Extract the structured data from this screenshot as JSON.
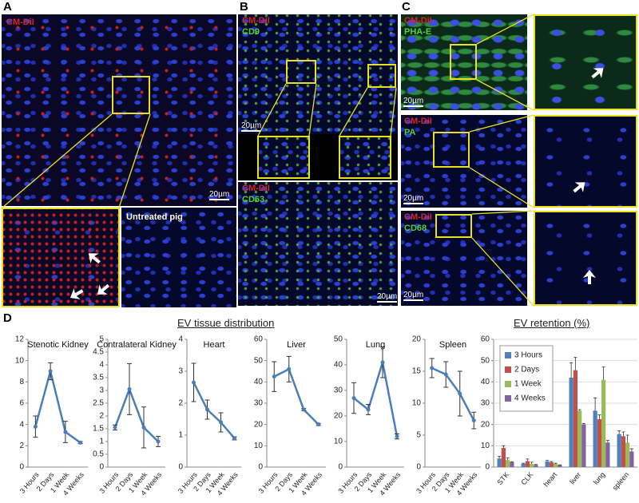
{
  "panel_a": {
    "label": "A",
    "stain": "CM-DiI",
    "scale_bar": "20µm",
    "control": "Untreated pig"
  },
  "panel_b": {
    "label": "B",
    "top": {
      "stain1": "CM-DiI",
      "stain2": "CD9",
      "scale_bar": "20µm"
    },
    "bottom": {
      "stain1": "CM-DiI",
      "stain2": "CD63",
      "scale_bar": "20µm"
    }
  },
  "panel_c": {
    "label": "C",
    "rows": [
      {
        "stain1": "CM-DiI",
        "stain2": "PHA-E",
        "scale_bar": "20µm"
      },
      {
        "stain1": "CM-DiI",
        "stain2": "PA",
        "scale_bar": "20µm"
      },
      {
        "stain1": "CM-DiI",
        "stain2": "CD68",
        "scale_bar": "20µm"
      }
    ]
  },
  "panel_d": {
    "label": "D",
    "heading": "EV tissue distribution"
  },
  "chart_data": [
    {
      "type": "line",
      "title": "Stenotic Kidney",
      "categories": [
        "3 Hours",
        "2 Days",
        "1 Week",
        "4 Weeks"
      ],
      "values": [
        3.8,
        9.0,
        3.3,
        2.3
      ],
      "errors": [
        1.0,
        0.8,
        1.0,
        0.1
      ],
      "color": "#4a7ebb",
      "ylim": [
        0,
        12
      ],
      "yticks": [
        0,
        2,
        4,
        6,
        8,
        10,
        12
      ]
    },
    {
      "type": "line",
      "title": "Contralateral Kidney",
      "categories": [
        "3 Hours",
        "2 Days",
        "1 Week",
        "4 Weeks"
      ],
      "values": [
        1.55,
        3.05,
        1.55,
        1.0
      ],
      "errors": [
        0.1,
        1.0,
        0.8,
        0.2
      ],
      "color": "#4a7ebb",
      "ylim": [
        0,
        5
      ],
      "yticks": [
        0,
        0.5,
        1,
        1.5,
        2,
        2.5,
        3,
        3.5,
        4,
        4.5,
        5
      ]
    },
    {
      "type": "line",
      "title": "Heart",
      "categories": [
        "3 Hours",
        "2 Days",
        "1 Week",
        "4 Weeks"
      ],
      "values": [
        2.65,
        1.8,
        1.4,
        0.9
      ],
      "errors": [
        0.6,
        0.3,
        0.3,
        0.05
      ],
      "color": "#4a7ebb",
      "ylim": [
        0,
        4
      ],
      "yticks": [
        0,
        1,
        2,
        3,
        4
      ]
    },
    {
      "type": "line",
      "title": "Liver",
      "categories": [
        "3 Hours",
        "2 Days",
        "1 Week",
        "4 Weeks"
      ],
      "values": [
        42.5,
        46,
        27,
        20
      ],
      "errors": [
        7,
        6,
        0.5,
        0.5
      ],
      "color": "#4a7ebb",
      "ylim": [
        0,
        60
      ],
      "yticks": [
        0,
        10,
        20,
        30,
        40,
        50,
        60
      ]
    },
    {
      "type": "line",
      "title": "Lung",
      "categories": [
        "3 Hours",
        "2 Days",
        "1 Week",
        "4 Weeks"
      ],
      "values": [
        27,
        22.5,
        41,
        12
      ],
      "errors": [
        6,
        2,
        6,
        1
      ],
      "color": "#4a7ebb",
      "ylim": [
        0,
        50
      ],
      "yticks": [
        0,
        10,
        20,
        30,
        40,
        50
      ]
    },
    {
      "type": "line",
      "title": "Spleen",
      "categories": [
        "3 Hours",
        "2 Days",
        "1 Week",
        "4 Weeks"
      ],
      "values": [
        15.5,
        14.5,
        11.5,
        7.3
      ],
      "errors": [
        1.5,
        2,
        3.5,
        1.3
      ],
      "color": "#4a7ebb",
      "ylim": [
        0,
        20
      ],
      "yticks": [
        0,
        5,
        10,
        15,
        20
      ]
    },
    {
      "type": "bar",
      "title": "EV retention (%)",
      "categories": [
        "STK",
        "CLK",
        "heart",
        "liver",
        "lung",
        "spleen"
      ],
      "series": [
        {
          "name": "3 Hours",
          "color": "#4f81bd",
          "values": [
            4,
            1.5,
            2.7,
            42,
            26.5,
            15.5
          ],
          "errors": [
            1,
            0.3,
            0.5,
            7,
            6,
            1.5
          ]
        },
        {
          "name": "2 Days",
          "color": "#c0504d",
          "values": [
            9,
            2.8,
            2.2,
            45.5,
            22.5,
            14.5
          ],
          "errors": [
            1,
            1,
            0.4,
            6,
            2,
            2
          ]
        },
        {
          "name": "1 Week",
          "color": "#9bbb59",
          "values": [
            3.3,
            1.5,
            1.5,
            26.5,
            41,
            11.5
          ],
          "errors": [
            1,
            0.8,
            0.3,
            0.5,
            6,
            3.5
          ]
        },
        {
          "name": "4 Weeks",
          "color": "#8064a2",
          "values": [
            2.3,
            1,
            0.9,
            20,
            11.5,
            7.3
          ],
          "errors": [
            0.2,
            0.2,
            0.1,
            0.5,
            1,
            1.3
          ]
        }
      ],
      "ylim": [
        0,
        60
      ],
      "yticks": [
        0,
        10,
        20,
        30,
        40,
        50,
        60
      ],
      "legend": "upper left"
    }
  ]
}
